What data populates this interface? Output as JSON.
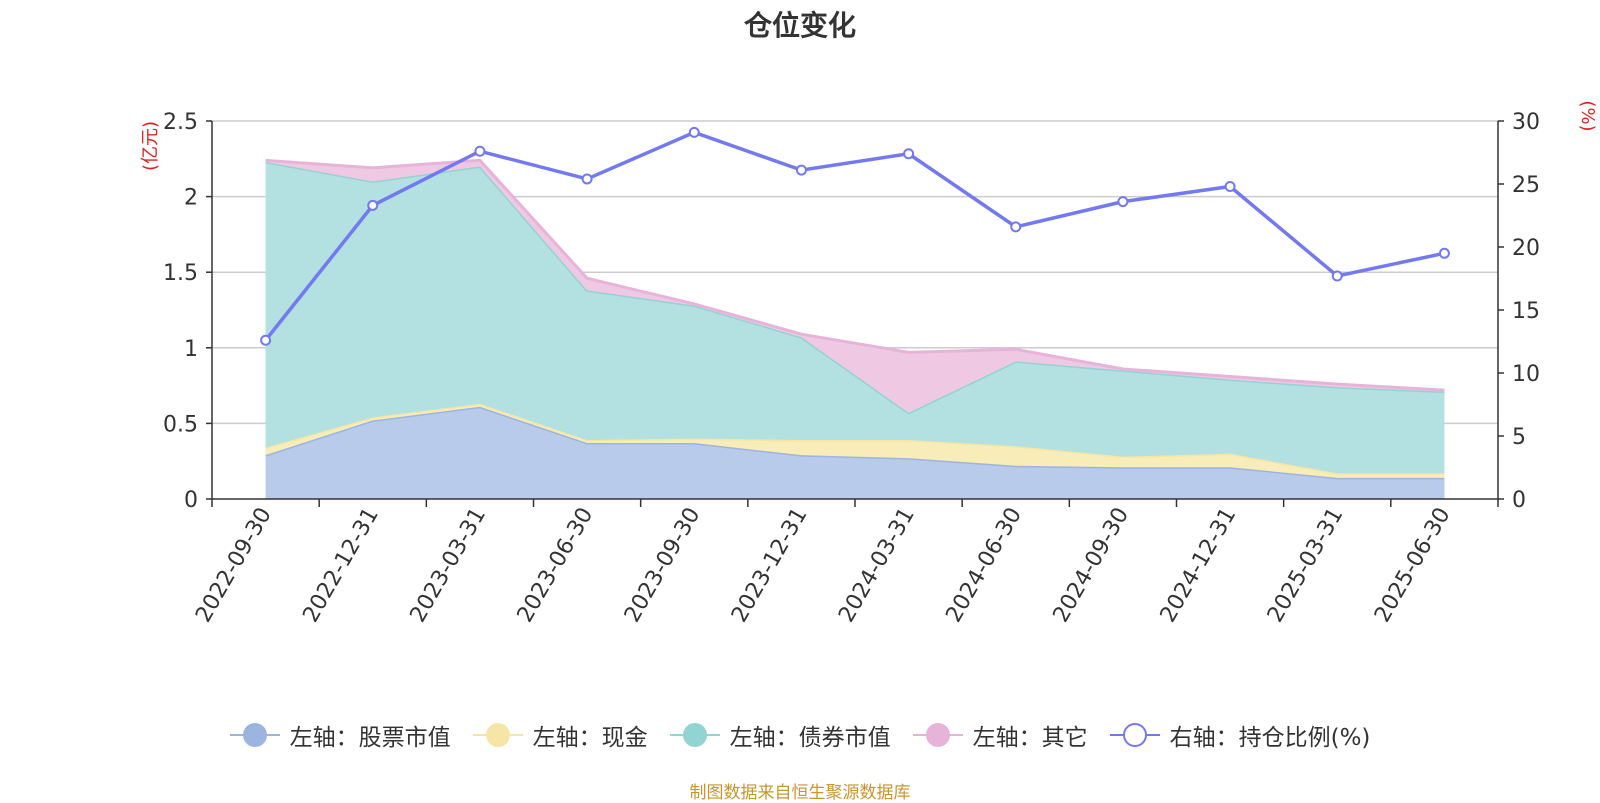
{
  "title": "仓位变化",
  "source_note": "制图数据来自恒生聚源数据库",
  "chart_data": {
    "type": "area",
    "title": "仓位变化",
    "x": [
      "2022-09-30",
      "2022-12-31",
      "2023-03-31",
      "2023-06-30",
      "2023-09-30",
      "2023-12-31",
      "2024-03-31",
      "2024-06-30",
      "2024-09-30",
      "2024-12-31",
      "2025-03-31",
      "2025-06-30"
    ],
    "left_axis": {
      "unit": "(亿元)",
      "ylim": [
        0,
        2.5
      ],
      "ticks": [
        "0",
        "0.5",
        "1",
        "1.5",
        "2",
        "2.5"
      ]
    },
    "right_axis": {
      "unit": "(%)",
      "ylim": [
        0,
        30
      ],
      "ticks": [
        "0",
        "5",
        "10",
        "15",
        "20",
        "25",
        "30"
      ]
    },
    "stacked": true,
    "grid": true,
    "legend_position": "bottom",
    "series": [
      {
        "name": "左轴：股票市值",
        "axis": "left",
        "type": "area",
        "color": "#9bb5e0",
        "fill": "#b8cbeb",
        "values": [
          0.29,
          0.52,
          0.61,
          0.37,
          0.37,
          0.29,
          0.27,
          0.22,
          0.21,
          0.21,
          0.14,
          0.14
        ]
      },
      {
        "name": "左轴：现金",
        "axis": "left",
        "type": "area",
        "color": "#f5e6a6",
        "fill": "#f8ecb8",
        "values": [
          0.05,
          0.02,
          0.02,
          0.02,
          0.03,
          0.1,
          0.12,
          0.13,
          0.07,
          0.09,
          0.03,
          0.03
        ]
      },
      {
        "name": "左轴：债券市值",
        "axis": "left",
        "type": "area",
        "color": "#92d3d4",
        "fill": "#b3e0e0",
        "values": [
          1.89,
          1.56,
          1.57,
          0.99,
          0.88,
          0.68,
          0.18,
          0.56,
          0.57,
          0.49,
          0.57,
          0.54
        ]
      },
      {
        "name": "左轴：其它",
        "axis": "left",
        "type": "area",
        "color": "#e8b3d9",
        "fill": "#efc9e3",
        "values": [
          0.01,
          0.09,
          0.04,
          0.08,
          0.01,
          0.02,
          0.4,
          0.08,
          0.01,
          0.02,
          0.02,
          0.01
        ]
      },
      {
        "name": "右轴：持仓比例(%)",
        "axis": "right",
        "type": "line",
        "color": "#7479ef",
        "values": [
          12.6,
          23.3,
          27.6,
          25.4,
          29.1,
          26.1,
          27.4,
          21.6,
          23.6,
          24.8,
          17.7,
          19.5
        ]
      }
    ]
  }
}
